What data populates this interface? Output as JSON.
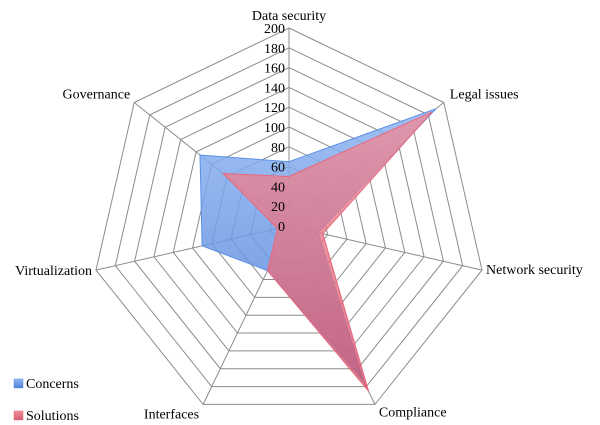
{
  "chart_data": {
    "type": "radar",
    "categories": [
      "Data security",
      "Legal issues",
      "Network security",
      "Compliance",
      "Interfaces",
      "Virtualization",
      "Governance"
    ],
    "series": [
      {
        "name": "Concerns",
        "values": [
          65,
          190,
          30,
          175,
          50,
          90,
          115
        ],
        "color": "#5b8fe6"
      },
      {
        "name": "Solutions",
        "values": [
          50,
          185,
          35,
          185,
          50,
          12,
          85
        ],
        "color": "#e8697d"
      }
    ],
    "ticks": [
      "0",
      "20",
      "40",
      "60",
      "80",
      "100",
      "120",
      "140",
      "160",
      "180",
      "200"
    ],
    "rmin": 0,
    "rmax": 200,
    "legend_position": "bottom-left",
    "grid": true
  }
}
